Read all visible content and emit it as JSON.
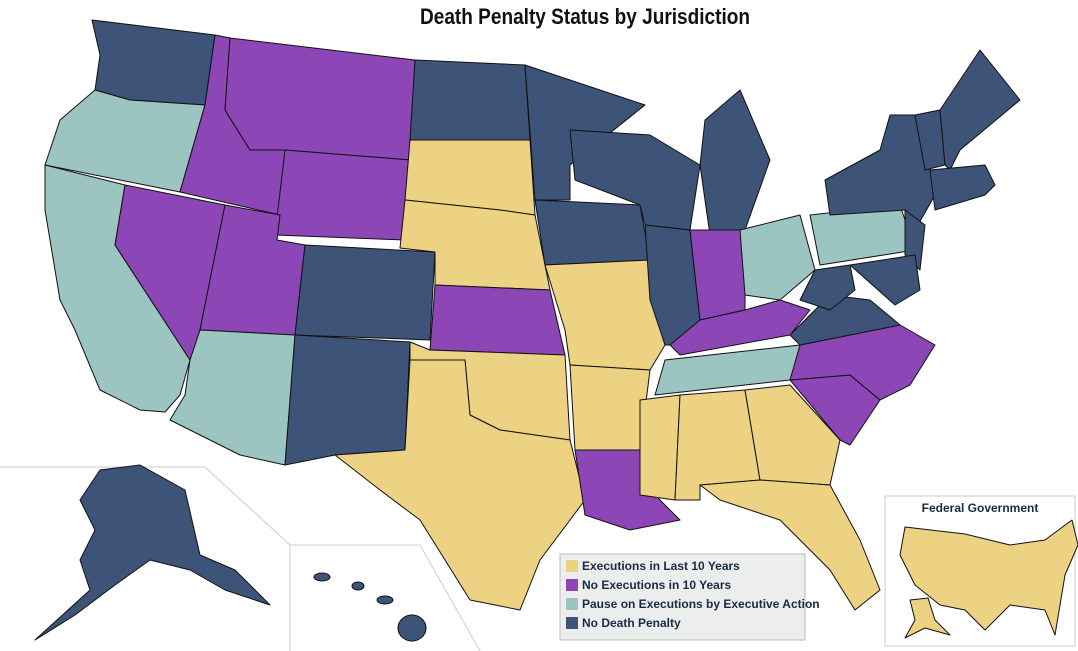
{
  "title": "Death Penalty Status by Jurisdiction",
  "legend": [
    {
      "label": "Executions in Last 10 Years",
      "color": "#edd283"
    },
    {
      "label": "No Executions in 10 Years",
      "color": "#8c46b6"
    },
    {
      "label": "Pause on Executions by Executive Action",
      "color": "#9cc4c1"
    },
    {
      "label": "No Death Penalty",
      "color": "#3d5478"
    }
  ],
  "inset_title": "Federal Government",
  "inset_status": 0
}
